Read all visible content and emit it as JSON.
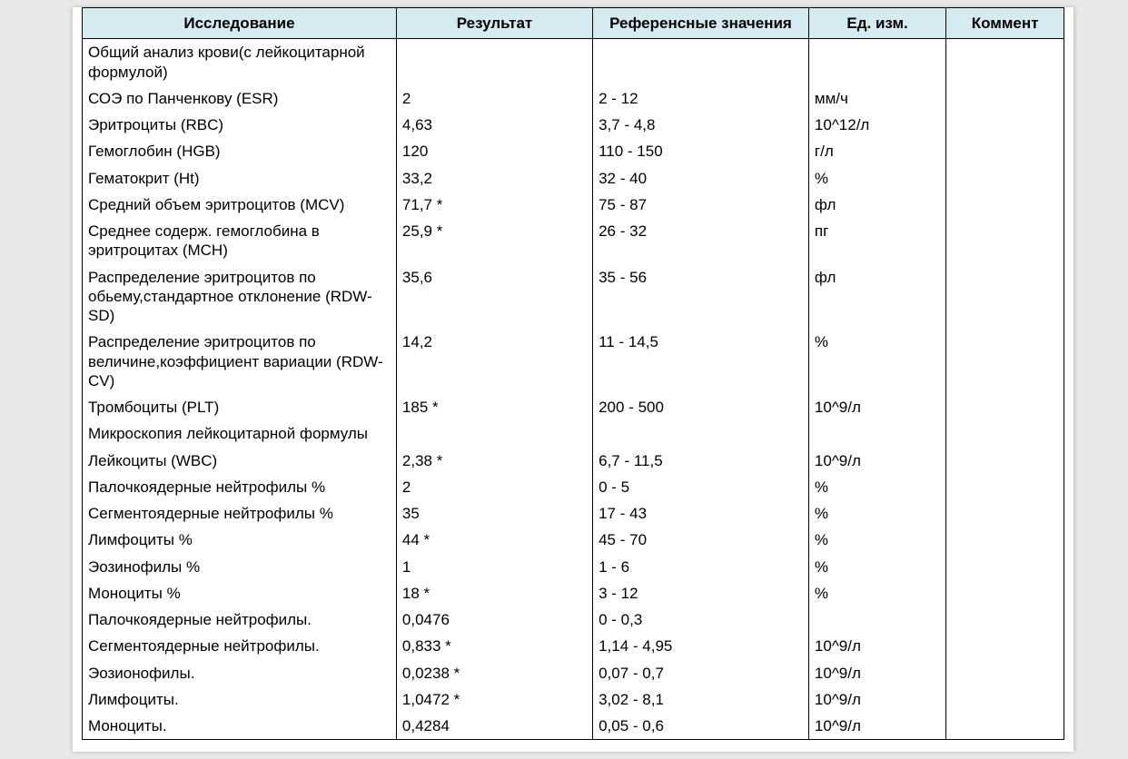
{
  "table": {
    "header_bg": "#d6eaf2",
    "border_color": "#000000",
    "columns": [
      {
        "key": "test",
        "label": "Исследование",
        "width": "32%",
        "align": "center"
      },
      {
        "key": "result",
        "label": "Результат",
        "width": "20%",
        "align": "center"
      },
      {
        "key": "ref",
        "label": "Референсные значения",
        "width": "22%",
        "align": "center"
      },
      {
        "key": "unit",
        "label": "Ед. изм.",
        "width": "14%",
        "align": "center"
      },
      {
        "key": "comment",
        "label": "Коммент",
        "width": "12%",
        "align": "center"
      }
    ],
    "rows": [
      {
        "test": "Общий анализ крови(с лейкоцитарной формулой)",
        "result": "",
        "ref": "",
        "unit": "",
        "comment": ""
      },
      {
        "test": "СОЭ по  Панченкову (ESR)",
        "result": "2",
        "ref": "2 - 12",
        "unit": "мм/ч",
        "comment": ""
      },
      {
        "test": "Эритроциты (RBC)",
        "result": "4,63",
        "ref": "3,7 - 4,8",
        "unit": "10^12/л",
        "comment": ""
      },
      {
        "test": "Гемоглобин (HGB)",
        "result": "120",
        "ref": "110 - 150",
        "unit": "г/л",
        "comment": ""
      },
      {
        "test": "Гематокрит (Ht)",
        "result": "33,2",
        "ref": "32 - 40",
        "unit": "%",
        "comment": ""
      },
      {
        "test": "Средний объем эритроцитов (MCV)",
        "result": "71,7 *",
        "ref": "75 - 87",
        "unit": "фл",
        "comment": ""
      },
      {
        "test": "Среднее содерж.  гемоглобина в эритроцитах (MCH)",
        "result": "25,9 *",
        "ref": "26 - 32",
        "unit": "пг",
        "comment": ""
      },
      {
        "test": "Распределение эритроцитов по обьему,стандартное отклонение (RDW-SD)",
        "result": "35,6",
        "ref": "35 - 56",
        "unit": "фл",
        "comment": ""
      },
      {
        "test": "Распределение эритроцитов по величине,коэффициент вариации (RDW-CV)",
        "result": "14,2",
        "ref": "11 - 14,5",
        "unit": "%",
        "comment": ""
      },
      {
        "test": "Тромбоциты (PLT)",
        "result": "185 *",
        "ref": "200 - 500",
        "unit": "10^9/л",
        "comment": ""
      },
      {
        "test": "Микроскопия лейкоцитарной формулы",
        "result": "",
        "ref": "",
        "unit": "",
        "comment": ""
      },
      {
        "test": "Лейкоциты (WBC)",
        "result": "2,38 *",
        "ref": "6,7 - 11,5",
        "unit": "10^9/л",
        "comment": ""
      },
      {
        "test": "Палочкоядерные нейтрофилы %",
        "result": "2",
        "ref": "0 - 5",
        "unit": "%",
        "comment": ""
      },
      {
        "test": "Сегментоядерные нейтрофилы %",
        "result": "35",
        "ref": "17 - 43",
        "unit": "%",
        "comment": ""
      },
      {
        "test": "Лимфоциты %",
        "result": "44 *",
        "ref": "45 - 70",
        "unit": "%",
        "comment": ""
      },
      {
        "test": "Эозинофилы %",
        "result": "1",
        "ref": "1 - 6",
        "unit": "%",
        "comment": ""
      },
      {
        "test": "Моноциты %",
        "result": "18 *",
        "ref": "3 - 12",
        "unit": "%",
        "comment": ""
      },
      {
        "test": "Палочкоядерные нейтрофилы.",
        "result": "0,0476",
        "ref": "0 - 0,3",
        "unit": "",
        "comment": ""
      },
      {
        "test": "Сегментоядерные нейтрофилы.",
        "result": "0,833 *",
        "ref": "1,14 - 4,95",
        "unit": "10^9/л",
        "comment": ""
      },
      {
        "test": "Эозионофилы.",
        "result": "0,0238 *",
        "ref": "0,07 - 0,7",
        "unit": "10^9/л",
        "comment": ""
      },
      {
        "test": "Лимфоциты.",
        "result": "1,0472 *",
        "ref": "3,02 - 8,1",
        "unit": "10^9/л",
        "comment": ""
      },
      {
        "test": "Моноциты.",
        "result": "0,4284",
        "ref": "0,05 - 0,6",
        "unit": "10^9/л",
        "comment": ""
      }
    ]
  }
}
